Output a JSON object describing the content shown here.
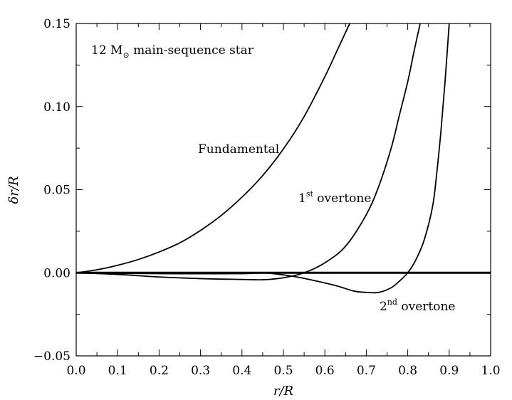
{
  "chart_data": {
    "type": "line",
    "title": "",
    "xlabel": "r/R",
    "ylabel": "δr/R",
    "xlim": [
      0.0,
      1.0
    ],
    "ylim": [
      -0.05,
      0.15
    ],
    "xticks": [
      0.0,
      0.1,
      0.2,
      0.3,
      0.4,
      0.5,
      0.6,
      0.7,
      0.8,
      0.9,
      1.0
    ],
    "xtick_labels": [
      "0.0",
      "0.1",
      "0.2",
      "0.3",
      "0.4",
      "0.5",
      "0.6",
      "0.7",
      "0.8",
      "0.9",
      "1.0"
    ],
    "yticks": [
      -0.05,
      0.0,
      0.05,
      0.1,
      0.15
    ],
    "ytick_labels": [
      "−0.05",
      "0.00",
      "0.05",
      "0.10",
      "0.15"
    ],
    "grid": false,
    "annotations": {
      "star": {
        "prefix": "12 M",
        "sub": "⊙",
        "suffix": " main-sequence star"
      },
      "fundamental": "Fundamental",
      "overtone1": {
        "num": "1",
        "sup": "st",
        "word": " overtone"
      },
      "overtone2": {
        "num": "2",
        "sup": "nd",
        "word": " overtone"
      }
    },
    "series": [
      {
        "x": [
          0.0,
          0.05,
          0.1,
          0.15,
          0.2,
          0.25,
          0.3,
          0.35,
          0.4,
          0.45,
          0.5,
          0.55,
          0.6,
          0.63,
          0.66
        ],
        "y": [
          0.0,
          0.0018,
          0.0045,
          0.008,
          0.0125,
          0.018,
          0.0255,
          0.0345,
          0.0455,
          0.0585,
          0.0745,
          0.094,
          0.118,
          0.134,
          0.15
        ]
      },
      {
        "x": [
          0.0,
          0.1,
          0.2,
          0.3,
          0.4,
          0.45,
          0.5,
          0.55,
          0.6,
          0.65,
          0.7,
          0.73,
          0.76,
          0.78,
          0.8,
          0.815,
          0.83
        ],
        "y": [
          0.0,
          -0.001,
          -0.0025,
          -0.0035,
          -0.004,
          -0.0042,
          -0.003,
          0.0,
          0.006,
          0.016,
          0.035,
          0.052,
          0.075,
          0.095,
          0.115,
          0.133,
          0.15
        ]
      },
      {
        "x": [
          0.0,
          0.1,
          0.2,
          0.3,
          0.4,
          0.46,
          0.52,
          0.58,
          0.63,
          0.67,
          0.7,
          0.73,
          0.76,
          0.78,
          0.8,
          0.82,
          0.84,
          0.86,
          0.87,
          0.88,
          0.89,
          0.9
        ],
        "y": [
          0.0,
          -0.0003,
          -0.0005,
          -0.0006,
          -0.0005,
          -0.0002,
          -0.002,
          -0.005,
          -0.008,
          -0.011,
          -0.0118,
          -0.0118,
          -0.009,
          -0.005,
          0.0,
          0.008,
          0.02,
          0.04,
          0.06,
          0.085,
          0.115,
          0.15
        ]
      }
    ]
  }
}
